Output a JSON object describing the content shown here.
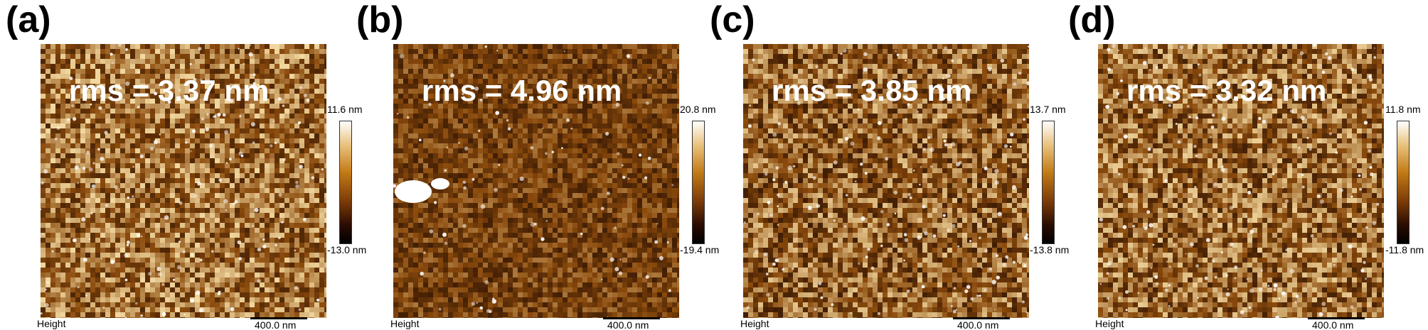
{
  "panels": [
    {
      "label": "(a)",
      "rms": "rms = 3.37 nm",
      "colorbar_max": "11.6 nm",
      "colorbar_min": "-13.0 nm",
      "channel": "Height",
      "scale_bar": "400.0 nm",
      "brightness": 0.62,
      "variation": 0.55
    },
    {
      "label": "(b)",
      "rms": "rms = 4.96 nm",
      "colorbar_max": "20.8 nm",
      "colorbar_min": "-19.4 nm",
      "channel": "Height",
      "scale_bar": "400.0 nm",
      "brightness": 0.42,
      "variation": 0.35
    },
    {
      "label": "(c)",
      "rms": "rms = 3.85 nm",
      "colorbar_max": "13.7 nm",
      "colorbar_min": "-13.8 nm",
      "channel": "Height",
      "scale_bar": "400.0 nm",
      "brightness": 0.55,
      "variation": 0.55
    },
    {
      "label": "(d)",
      "rms": "rms = 3.32 nm",
      "colorbar_max": "11.8 nm",
      "colorbar_min": "-11.8 nm",
      "channel": "Height",
      "scale_bar": "400.0 nm",
      "brightness": 0.58,
      "variation": 0.55
    }
  ],
  "colors": {
    "low": "#1a0600",
    "mid": "#8a4a0c",
    "high": "#f2d8a0",
    "peak": "#ffffff"
  }
}
